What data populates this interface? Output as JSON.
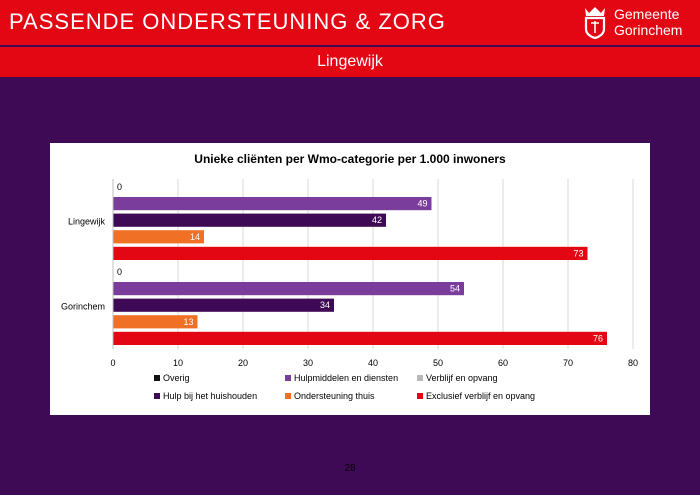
{
  "header": {
    "title": "PASSENDE ONDERSTEUNING & ZORG",
    "logo_line1": "Gemeente",
    "logo_line2": "Gorinchem"
  },
  "subheader": {
    "title": "Lingewijk"
  },
  "page_number": "28",
  "colors": {
    "brand_red": "#e30613",
    "background": "#3f0a55"
  },
  "chart_data": {
    "type": "bar",
    "orientation": "horizontal",
    "title": "Unieke cliënten per Wmo-categorie per 1.000 inwoners",
    "categories": [
      "Lingewijk",
      "Gorinchem"
    ],
    "xlim": [
      0,
      80
    ],
    "xticks": [
      "0",
      "10",
      "20",
      "30",
      "40",
      "50",
      "60",
      "70",
      "80"
    ],
    "grid": true,
    "legend_position": "bottom",
    "series": [
      {
        "name": "Overig",
        "color": "#111111",
        "values": [
          0,
          0
        ]
      },
      {
        "name": "Hulpmiddelen en diensten",
        "color": "#7b3d9b",
        "values": [
          49,
          54
        ]
      },
      {
        "name": "Verblijf en opvang",
        "color": "#b9b9b9",
        "values": [
          null,
          null
        ]
      },
      {
        "name": "Hulp bij het huishouden",
        "color": "#3f0a55",
        "values": [
          42,
          34
        ]
      },
      {
        "name": "Ondersteuning thuis",
        "color": "#f07025",
        "values": [
          14,
          13
        ]
      },
      {
        "name": "Exclusief verblijf en opvang",
        "color": "#e30613",
        "values": [
          73,
          76
        ]
      }
    ]
  }
}
